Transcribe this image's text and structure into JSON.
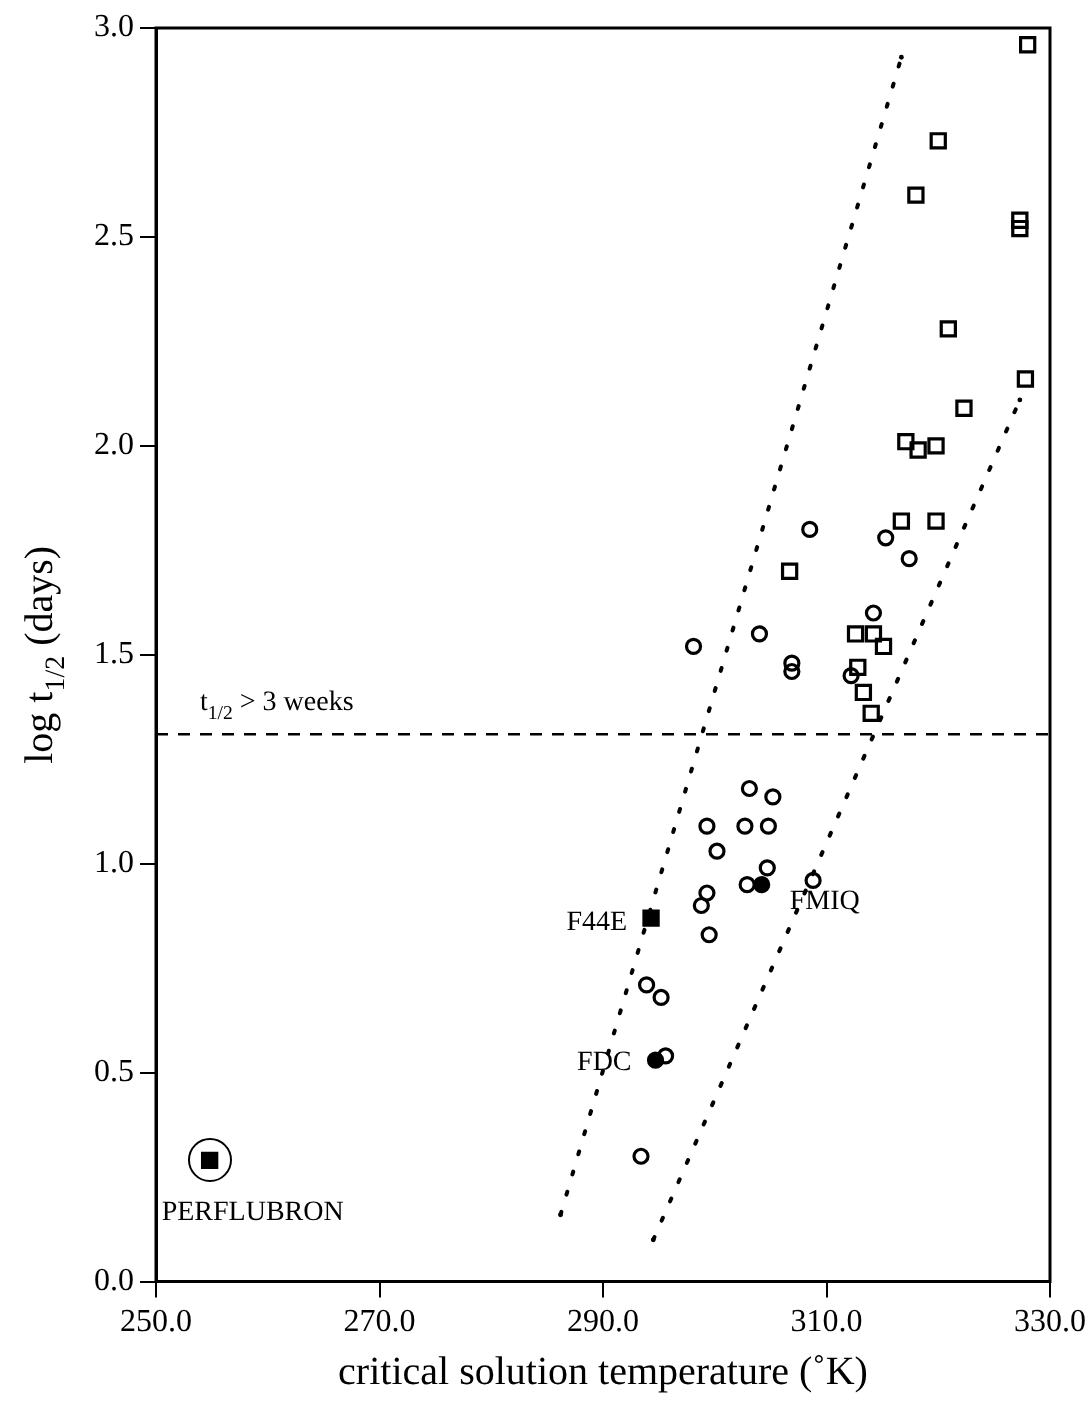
{
  "chart_data": {
    "type": "scatter",
    "xlabel": "critical solution temperature (˚K)",
    "ylabel": "log t$_{1/2}$ (days)",
    "xlim": [
      250,
      330
    ],
    "ylim": [
      0,
      3
    ],
    "xticks": [
      {
        "value": 250,
        "label": "250.0"
      },
      {
        "value": 270,
        "label": "270.0"
      },
      {
        "value": 290,
        "label": "290.0"
      },
      {
        "value": 310,
        "label": "310.0"
      },
      {
        "value": 330,
        "label": "330.0"
      }
    ],
    "yticks": [
      {
        "value": 0,
        "label": "0.0"
      },
      {
        "value": 0.5,
        "label": "0.5"
      },
      {
        "value": 1,
        "label": "1.0"
      },
      {
        "value": 1.5,
        "label": "1.5"
      },
      {
        "value": 2,
        "label": "2.0"
      },
      {
        "value": 2.5,
        "label": "2.5"
      },
      {
        "value": 3,
        "label": "3.0"
      }
    ],
    "grid": false,
    "legend": false,
    "series": [
      {
        "type": "scatter",
        "marker": "square",
        "color": "#000000",
        "x": [
          328.0,
          320.0,
          318.0,
          327.3,
          327.3,
          320.9,
          327.8,
          322.3,
          317.1,
          318.2,
          319.8,
          316.7,
          319.8,
          306.7,
          312.6,
          314.2,
          315.1,
          312.8,
          313.3,
          314.0
        ],
        "values": [
          2.96,
          2.73,
          2.6,
          2.54,
          2.52,
          2.28,
          2.16,
          2.09,
          2.01,
          1.99,
          2.0,
          1.82,
          1.82,
          1.7,
          1.55,
          1.55,
          1.52,
          1.47,
          1.41,
          1.36
        ]
      },
      {
        "type": "scatter",
        "marker": "circle",
        "color": "#000000",
        "x": [
          298.1,
          304.0,
          308.5,
          315.3,
          317.4,
          314.2,
          306.9,
          306.9,
          312.2,
          303.1,
          305.2,
          299.3,
          302.7,
          304.8,
          300.2,
          304.7,
          302.9,
          308.8,
          299.3,
          298.8,
          299.5,
          293.9,
          295.2,
          295.6,
          293.4
        ],
        "values": [
          1.52,
          1.55,
          1.8,
          1.78,
          1.73,
          1.6,
          1.48,
          1.46,
          1.45,
          1.18,
          1.16,
          1.09,
          1.09,
          1.09,
          1.03,
          0.99,
          0.95,
          0.96,
          0.93,
          0.9,
          0.83,
          0.71,
          0.68,
          0.54,
          0.3
        ]
      },
      {
        "type": "scatter",
        "marker": "square",
        "color": "#000000",
        "x": [
          254.8,
          294.3
        ],
        "values": [
          0.29,
          0.87
        ]
      },
      {
        "type": "scatter",
        "marker": "circle",
        "color": "#000000",
        "x": [
          304.2,
          294.7
        ],
        "values": [
          0.95,
          0.53
        ]
      },
      {
        "type": "line",
        "marker": "none",
        "line_style": "dotted",
        "color": "#000000",
        "x": [
          286.2,
          316.7
        ],
        "values": [
          0.16,
          2.93
        ]
      },
      {
        "type": "line",
        "marker": "none",
        "line_style": "dotted",
        "color": "#000000",
        "x": [
          294.5,
          327.3
        ],
        "values": [
          0.1,
          2.11
        ]
      }
    ],
    "ref_lines": [
      {
        "axis": "y",
        "value": 1.31,
        "label": "t$_{1/2}$ > 3 weeks",
        "line_style": "dashed",
        "color": "#000000"
      }
    ],
    "annotations": [
      {
        "text": "PERFLUBRON",
        "x": 254.8,
        "y": 0.29
      },
      {
        "text": "F44E",
        "x": 294.3,
        "y": 0.87
      },
      {
        "text": "FMIQ",
        "x": 304.2,
        "y": 0.95
      },
      {
        "text": "FDC",
        "x": 294.7,
        "y": 0.53
      }
    ]
  }
}
